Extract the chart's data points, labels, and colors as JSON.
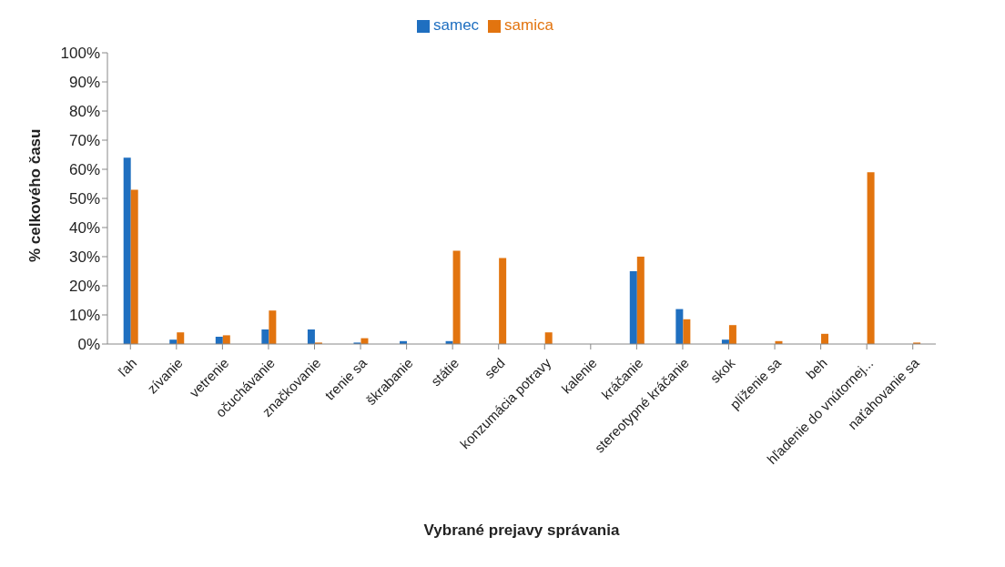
{
  "chart_data": {
    "type": "bar",
    "xlabel": "Vybrané prejavy správania",
    "ylabel": "% celkového času",
    "categories": [
      "ľah",
      "zívanie",
      "vetrenie",
      "očuchávanie",
      "značkovanie",
      "trenie sa",
      "škrabanie",
      "státie",
      "sed",
      "konzumácia potravy",
      "kalenie",
      "kráčanie",
      "stereotypné kráčanie",
      "skok",
      "plíženie sa",
      "beh",
      "hľadenie do vnútornej...",
      "naťahovanie sa"
    ],
    "series": [
      {
        "name": "samec",
        "color": "#1f6fc0",
        "values": [
          64,
          1.5,
          2.5,
          5,
          5,
          0.5,
          1,
          1,
          0,
          0,
          0,
          25,
          12,
          1.5,
          0,
          0,
          0,
          0
        ]
      },
      {
        "name": "samica",
        "color": "#e2740f",
        "values": [
          53,
          4,
          3,
          11.5,
          0.5,
          2,
          0,
          32,
          29.5,
          4,
          0,
          30,
          8.5,
          6.5,
          1,
          3.5,
          59,
          0.5
        ]
      }
    ],
    "ylim": [
      0,
      100
    ],
    "yticks": [
      {
        "value": 0,
        "label": "0%"
      },
      {
        "value": 10,
        "label": "10%"
      },
      {
        "value": 20,
        "label": "20%"
      },
      {
        "value": 30,
        "label": "30%"
      },
      {
        "value": 40,
        "label": "40%"
      },
      {
        "value": 50,
        "label": "50%"
      },
      {
        "value": 60,
        "label": "60%"
      },
      {
        "value": 70,
        "label": "70%"
      },
      {
        "value": 80,
        "label": "80%"
      },
      {
        "value": 90,
        "label": "90%"
      },
      {
        "value": 100,
        "label": "100%"
      }
    ],
    "grid": false,
    "legend": "top"
  }
}
